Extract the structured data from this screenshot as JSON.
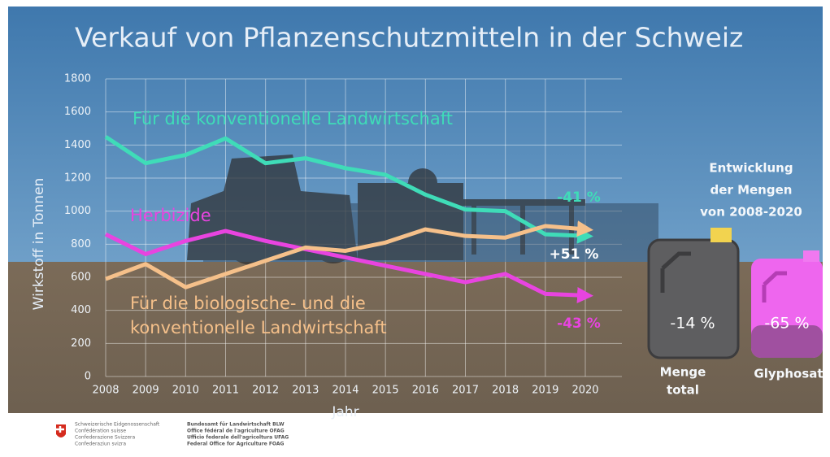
{
  "chart_data": {
    "type": "line",
    "title": "Verkauf von Pflanzenschutzmitteln in der Schweiz",
    "x_label": "Jahr",
    "y_label": "Wirkstoff in Tonnen",
    "x": [
      2008,
      2009,
      2010,
      2011,
      2012,
      2013,
      2014,
      2015,
      2016,
      2017,
      2018,
      2019,
      2020
    ],
    "xlim": [
      2008,
      2020
    ],
    "xticks": [
      2008,
      2009,
      2010,
      2011,
      2012,
      2013,
      2014,
      2015,
      2016,
      2017,
      2018,
      2019,
      2020
    ],
    "ylim": [
      0,
      1800
    ],
    "yticks": [
      0,
      200,
      400,
      600,
      800,
      1000,
      1200,
      1400,
      1600,
      1800
    ],
    "grid": true,
    "series": [
      {
        "name": "Für die konventionelle Landwirtschaft",
        "color": "#3fdcb8",
        "values": [
          1450,
          1290,
          1340,
          1440,
          1290,
          1320,
          1260,
          1220,
          1100,
          1010,
          1000,
          860,
          850
        ]
      },
      {
        "name": "Herbizide",
        "color": "#e844e0",
        "values": [
          860,
          740,
          820,
          880,
          820,
          770,
          720,
          670,
          620,
          570,
          620,
          500,
          490
        ]
      },
      {
        "name": "Für die biologische- und die konventionelle Landwirtschaft",
        "color": "#f5c08a",
        "values": [
          590,
          680,
          540,
          620,
          700,
          780,
          760,
          810,
          890,
          850,
          840,
          910,
          890
        ]
      }
    ],
    "annotations": [
      "-41 %",
      "-43 %",
      "+51 %"
    ],
    "panel": {
      "title_lines": [
        "Entwicklung",
        "der Mengen",
        "von 2008-2020"
      ],
      "items": [
        {
          "value_label": "-14 %",
          "label_lines": [
            "Menge",
            "total"
          ]
        },
        {
          "value_label": "-65 %",
          "label_lines": [
            "Glyphosat"
          ]
        }
      ]
    },
    "footer": {
      "left": [
        "Schweizerische Eidgenossenschaft",
        "Confédération suisse",
        "Confederazione Svizzera",
        "Confederaziun svizra"
      ],
      "right": [
        "Bundesamt für Landwirtschaft BLW",
        "Office fédéral de l'agriculture OFAG",
        "Ufficio federale dell'agricoltura UFAG",
        "Federal Office for Agriculture FOAG"
      ]
    }
  }
}
